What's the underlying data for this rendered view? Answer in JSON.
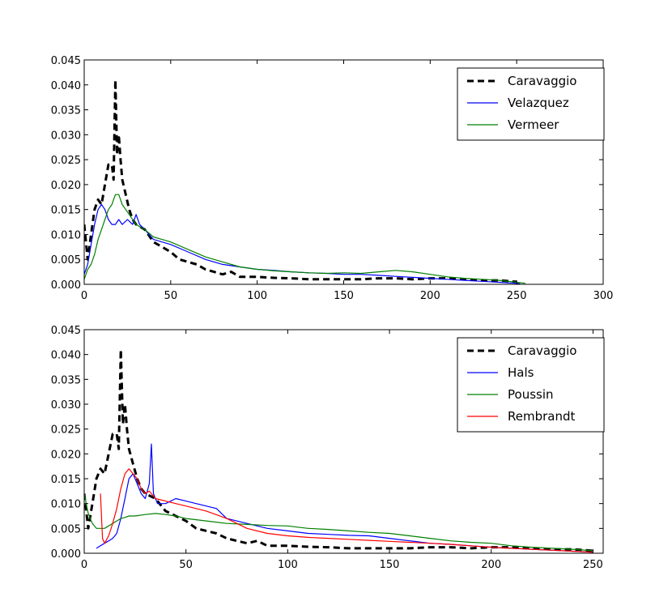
{
  "chart_data": [
    {
      "type": "line",
      "title": "",
      "xlabel": "",
      "ylabel": "",
      "xlim": [
        0,
        300
      ],
      "ylim": [
        0,
        0.045
      ],
      "xticks": [
        0,
        50,
        100,
        150,
        200,
        250,
        300
      ],
      "yticks": [
        0,
        0.005,
        0.01,
        0.015,
        0.02,
        0.025,
        0.03,
        0.035,
        0.04,
        0.045
      ],
      "xtick_labels": [
        "0",
        "50",
        "100",
        "150",
        "200",
        "250",
        "300"
      ],
      "ytick_labels": [
        "0.000",
        "0.005",
        "0.010",
        "0.015",
        "0.020",
        "0.025",
        "0.030",
        "0.035",
        "0.040",
        "0.045"
      ],
      "legend_position": "top-right",
      "series": [
        {
          "name": "Caravaggio",
          "color": "#000000",
          "dashed": true,
          "x": [
            0,
            2,
            4,
            6,
            8,
            10,
            12,
            14,
            16,
            17,
            18,
            19,
            20,
            21,
            22,
            24,
            26,
            28,
            30,
            35,
            40,
            45,
            50,
            55,
            60,
            65,
            70,
            75,
            80,
            85,
            90,
            100,
            110,
            120,
            130,
            140,
            150,
            160,
            170,
            180,
            190,
            200,
            210,
            220,
            230,
            240,
            250
          ],
          "y": [
            0.012,
            0.005,
            0.01,
            0.015,
            0.017,
            0.016,
            0.02,
            0.024,
            0.024,
            0.021,
            0.041,
            0.026,
            0.03,
            0.025,
            0.021,
            0.018,
            0.015,
            0.013,
            0.012,
            0.011,
            0.0085,
            0.0075,
            0.0065,
            0.005,
            0.0045,
            0.004,
            0.003,
            0.0025,
            0.002,
            0.0025,
            0.0015,
            0.0015,
            0.0013,
            0.0012,
            0.001,
            0.001,
            0.001,
            0.001,
            0.0012,
            0.0012,
            0.001,
            0.0012,
            0.0012,
            0.001,
            0.0008,
            0.0008,
            0.0005
          ]
        },
        {
          "name": "Velazquez",
          "color": "#0000ff",
          "dashed": false,
          "x": [
            0,
            2,
            4,
            6,
            8,
            10,
            12,
            14,
            16,
            18,
            20,
            22,
            25,
            28,
            30,
            32,
            35,
            40,
            45,
            50,
            60,
            70,
            80,
            90,
            100,
            110,
            120,
            130,
            140,
            150,
            160,
            170,
            180,
            190,
            200,
            210,
            220,
            230,
            240,
            250,
            252
          ],
          "y": [
            0.002,
            0.004,
            0.008,
            0.012,
            0.015,
            0.016,
            0.015,
            0.013,
            0.012,
            0.012,
            0.013,
            0.012,
            0.013,
            0.012,
            0.014,
            0.012,
            0.011,
            0.009,
            0.0085,
            0.008,
            0.0065,
            0.005,
            0.004,
            0.0035,
            0.003,
            0.0028,
            0.0025,
            0.0023,
            0.0022,
            0.002,
            0.002,
            0.0018,
            0.0016,
            0.0014,
            0.0012,
            0.001,
            0.0008,
            0.0006,
            0.0004,
            0.0002,
            0.0001
          ]
        },
        {
          "name": "Vermeer",
          "color": "#008000",
          "dashed": false,
          "x": [
            0,
            2,
            4,
            6,
            8,
            10,
            12,
            14,
            16,
            18,
            20,
            22,
            24,
            26,
            28,
            30,
            35,
            40,
            45,
            50,
            60,
            70,
            80,
            90,
            100,
            110,
            120,
            130,
            140,
            150,
            160,
            170,
            180,
            190,
            200,
            210,
            220,
            230,
            240,
            250,
            255
          ],
          "y": [
            0.001,
            0.003,
            0.004,
            0.006,
            0.009,
            0.011,
            0.013,
            0.015,
            0.016,
            0.018,
            0.018,
            0.016,
            0.015,
            0.014,
            0.013,
            0.012,
            0.011,
            0.0095,
            0.009,
            0.0085,
            0.007,
            0.0055,
            0.0045,
            0.0035,
            0.003,
            0.0027,
            0.0025,
            0.0023,
            0.0022,
            0.0023,
            0.0022,
            0.0025,
            0.0028,
            0.0025,
            0.002,
            0.0015,
            0.0012,
            0.001,
            0.0008,
            0.0004,
            0.0002
          ]
        }
      ]
    },
    {
      "type": "line",
      "title": "",
      "xlabel": "",
      "ylabel": "",
      "xlim": [
        0,
        255
      ],
      "ylim": [
        0,
        0.045
      ],
      "xticks": [
        0,
        50,
        100,
        150,
        200,
        250
      ],
      "yticks": [
        0,
        0.005,
        0.01,
        0.015,
        0.02,
        0.025,
        0.03,
        0.035,
        0.04,
        0.045
      ],
      "xtick_labels": [
        "0",
        "50",
        "100",
        "150",
        "200",
        "250"
      ],
      "ytick_labels": [
        "0.000",
        "0.005",
        "0.010",
        "0.015",
        "0.020",
        "0.025",
        "0.030",
        "0.035",
        "0.040",
        "0.045"
      ],
      "legend_position": "top-right",
      "series": [
        {
          "name": "Caravaggio",
          "color": "#000000",
          "dashed": true,
          "x": [
            0,
            2,
            4,
            6,
            8,
            10,
            12,
            14,
            16,
            17,
            18,
            19,
            20,
            21,
            22,
            24,
            26,
            28,
            30,
            35,
            40,
            45,
            50,
            55,
            60,
            65,
            70,
            75,
            80,
            85,
            90,
            100,
            110,
            120,
            130,
            140,
            150,
            160,
            170,
            180,
            190,
            200,
            210,
            220,
            230,
            240,
            250
          ],
          "y": [
            0.012,
            0.005,
            0.01,
            0.015,
            0.017,
            0.016,
            0.02,
            0.024,
            0.024,
            0.021,
            0.041,
            0.026,
            0.03,
            0.025,
            0.021,
            0.018,
            0.015,
            0.013,
            0.012,
            0.011,
            0.0085,
            0.0075,
            0.0065,
            0.005,
            0.0045,
            0.004,
            0.003,
            0.0025,
            0.002,
            0.0025,
            0.0015,
            0.0015,
            0.0013,
            0.0012,
            0.001,
            0.001,
            0.001,
            0.001,
            0.0012,
            0.0012,
            0.001,
            0.0012,
            0.0012,
            0.001,
            0.0008,
            0.0008,
            0.0005
          ]
        },
        {
          "name": "Hals",
          "color": "#0000ff",
          "dashed": false,
          "x": [
            6,
            8,
            10,
            12,
            14,
            16,
            18,
            20,
            22,
            24,
            26,
            28,
            30,
            32,
            33,
            34,
            36,
            40,
            45,
            50,
            55,
            60,
            65,
            70,
            80,
            90,
            100,
            110,
            120,
            130,
            140,
            150,
            160,
            170,
            180,
            190,
            200,
            210,
            220,
            230,
            240,
            250
          ],
          "y": [
            0.001,
            0.0015,
            0.002,
            0.0025,
            0.003,
            0.004,
            0.007,
            0.011,
            0.015,
            0.016,
            0.014,
            0.012,
            0.011,
            0.014,
            0.022,
            0.012,
            0.01,
            0.01,
            0.011,
            0.0105,
            0.01,
            0.0095,
            0.009,
            0.007,
            0.006,
            0.005,
            0.0045,
            0.004,
            0.0038,
            0.0036,
            0.0035,
            0.003,
            0.0025,
            0.002,
            0.0018,
            0.0015,
            0.0012,
            0.001,
            0.0008,
            0.0006,
            0.0004,
            0.0002
          ]
        },
        {
          "name": "Poussin",
          "color": "#008000",
          "dashed": false,
          "x": [
            0,
            2,
            4,
            6,
            8,
            10,
            12,
            14,
            16,
            18,
            20,
            22,
            25,
            30,
            35,
            40,
            45,
            50,
            60,
            70,
            80,
            90,
            100,
            110,
            120,
            130,
            140,
            150,
            160,
            170,
            180,
            190,
            200,
            210,
            220,
            230,
            240,
            250
          ],
          "y": [
            0.012,
            0.008,
            0.006,
            0.005,
            0.005,
            0.005,
            0.0055,
            0.006,
            0.0065,
            0.007,
            0.0072,
            0.0075,
            0.0075,
            0.0078,
            0.008,
            0.0078,
            0.0075,
            0.007,
            0.0065,
            0.006,
            0.0058,
            0.0056,
            0.0055,
            0.005,
            0.0048,
            0.0045,
            0.0042,
            0.004,
            0.0035,
            0.003,
            0.0025,
            0.0022,
            0.002,
            0.0015,
            0.0012,
            0.001,
            0.0008,
            0.0005
          ]
        },
        {
          "name": "Rembrandt",
          "color": "#ff0000",
          "dashed": false,
          "x": [
            8,
            9,
            10,
            12,
            14,
            16,
            18,
            20,
            22,
            24,
            26,
            28,
            30,
            32,
            35,
            40,
            45,
            50,
            60,
            70,
            80,
            90,
            100,
            110,
            120,
            130,
            140,
            150,
            160,
            170,
            180,
            190,
            200,
            210,
            220,
            230,
            240,
            250
          ],
          "y": [
            0.012,
            0.003,
            0.002,
            0.0035,
            0.006,
            0.009,
            0.013,
            0.016,
            0.017,
            0.016,
            0.015,
            0.013,
            0.012,
            0.0125,
            0.011,
            0.0105,
            0.01,
            0.0095,
            0.0085,
            0.007,
            0.005,
            0.004,
            0.0035,
            0.0032,
            0.003,
            0.0028,
            0.0026,
            0.0024,
            0.0022,
            0.002,
            0.0018,
            0.0015,
            0.0012,
            0.001,
            0.0008,
            0.0006,
            0.0004,
            0.0002
          ]
        }
      ]
    }
  ]
}
